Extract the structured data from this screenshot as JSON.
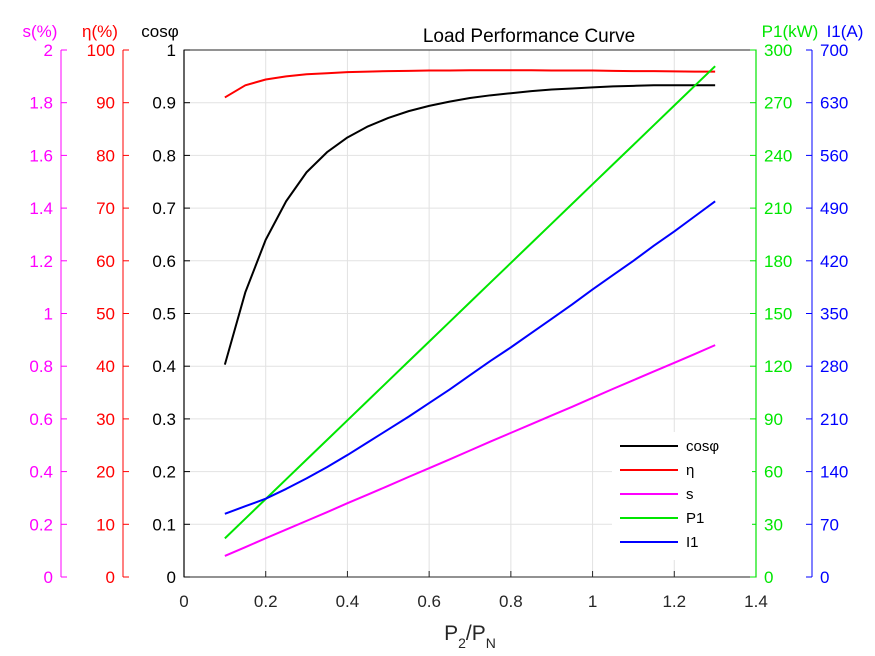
{
  "chart_data": {
    "type": "line",
    "title": "Load Performance Curve",
    "grid": true,
    "legend_position": "lower-right",
    "x_axis": {
      "label": "P2/PN",
      "label_main": "P",
      "label_sub1": "2",
      "label_sep": "/P",
      "label_sub2": "N",
      "range": [
        0,
        1.4
      ],
      "ticks": [
        "0",
        "0.2",
        "0.4",
        "0.6",
        "0.8",
        "1",
        "1.2",
        "1.4"
      ]
    },
    "y_axes": [
      {
        "id": "s",
        "label": "s(%)",
        "color": "#ff00ff",
        "side": "left-outer",
        "range": [
          0,
          2
        ],
        "ticks": [
          "0",
          "0.2",
          "0.4",
          "0.6",
          "0.8",
          "1",
          "1.2",
          "1.4",
          "1.6",
          "1.8",
          "2"
        ]
      },
      {
        "id": "eta",
        "label": "η(%)",
        "color": "#ff0000",
        "side": "left-middle",
        "range": [
          0,
          100
        ],
        "ticks": [
          "0",
          "10",
          "20",
          "30",
          "40",
          "50",
          "60",
          "70",
          "80",
          "90",
          "100"
        ]
      },
      {
        "id": "cos",
        "label": "cosφ",
        "color": "#000000",
        "side": "left-inner",
        "range": [
          0,
          1
        ],
        "ticks": [
          "0",
          "0.1",
          "0.2",
          "0.3",
          "0.4",
          "0.5",
          "0.6",
          "0.7",
          "0.8",
          "0.9",
          "1"
        ]
      },
      {
        "id": "p1",
        "label": "P1(kW)",
        "color": "#00e600",
        "side": "right-inner",
        "range": [
          0,
          300
        ],
        "ticks": [
          "0",
          "30",
          "60",
          "90",
          "120",
          "150",
          "180",
          "210",
          "240",
          "270",
          "300"
        ]
      },
      {
        "id": "i1",
        "label": "I1(A)",
        "color": "#0000ff",
        "side": "right-outer",
        "range": [
          0,
          700
        ],
        "ticks": [
          "0",
          "70",
          "140",
          "210",
          "280",
          "350",
          "420",
          "490",
          "560",
          "630",
          "700"
        ]
      }
    ],
    "x": [
      0.1,
      0.15,
      0.2,
      0.25,
      0.3,
      0.35,
      0.4,
      0.45,
      0.5,
      0.55,
      0.6,
      0.65,
      0.7,
      0.75,
      0.8,
      0.85,
      0.9,
      0.95,
      1.0,
      1.05,
      1.1,
      1.15,
      1.2,
      1.25,
      1.3
    ],
    "series": [
      {
        "name": "cosφ",
        "axis": "cos",
        "color": "#000000",
        "values": [
          0.403,
          0.54,
          0.64,
          0.713,
          0.768,
          0.806,
          0.834,
          0.855,
          0.871,
          0.884,
          0.894,
          0.902,
          0.909,
          0.914,
          0.918,
          0.922,
          0.925,
          0.927,
          0.929,
          0.931,
          0.932,
          0.933,
          0.933,
          0.933,
          0.933
        ]
      },
      {
        "name": "η",
        "axis": "eta",
        "color": "#ff0000",
        "values": [
          91.0,
          93.3,
          94.4,
          95.0,
          95.4,
          95.6,
          95.8,
          95.9,
          96.0,
          96.05,
          96.1,
          96.1,
          96.15,
          96.15,
          96.15,
          96.15,
          96.1,
          96.1,
          96.1,
          96.05,
          96.0,
          96.0,
          95.95,
          95.9,
          95.9
        ]
      },
      {
        "name": "s",
        "axis": "s",
        "color": "#ff00ff",
        "values": [
          0.08,
          0.113,
          0.147,
          0.18,
          0.213,
          0.246,
          0.28,
          0.313,
          0.346,
          0.38,
          0.413,
          0.446,
          0.48,
          0.514,
          0.547,
          0.58,
          0.613,
          0.646,
          0.68,
          0.714,
          0.747,
          0.78,
          0.813,
          0.846,
          0.88
        ]
      },
      {
        "name": "P1",
        "axis": "p1",
        "color": "#00e600",
        "values": [
          22,
          33.2,
          44.4,
          55.6,
          66.8,
          78,
          89.2,
          100.4,
          111.6,
          122.8,
          134,
          145.2,
          156.4,
          167.6,
          178.8,
          190,
          201.2,
          212.4,
          223.6,
          234.8,
          246,
          257.2,
          268.4,
          279.6,
          290.8
        ]
      },
      {
        "name": "I1",
        "axis": "i1",
        "color": "#0000ff",
        "values": [
          84,
          94,
          104,
          117,
          131,
          146,
          162,
          179,
          196,
          213,
          231,
          249,
          268,
          287,
          305,
          324,
          343,
          362,
          382,
          401,
          420,
          440,
          459,
          479,
          499
        ]
      }
    ]
  }
}
